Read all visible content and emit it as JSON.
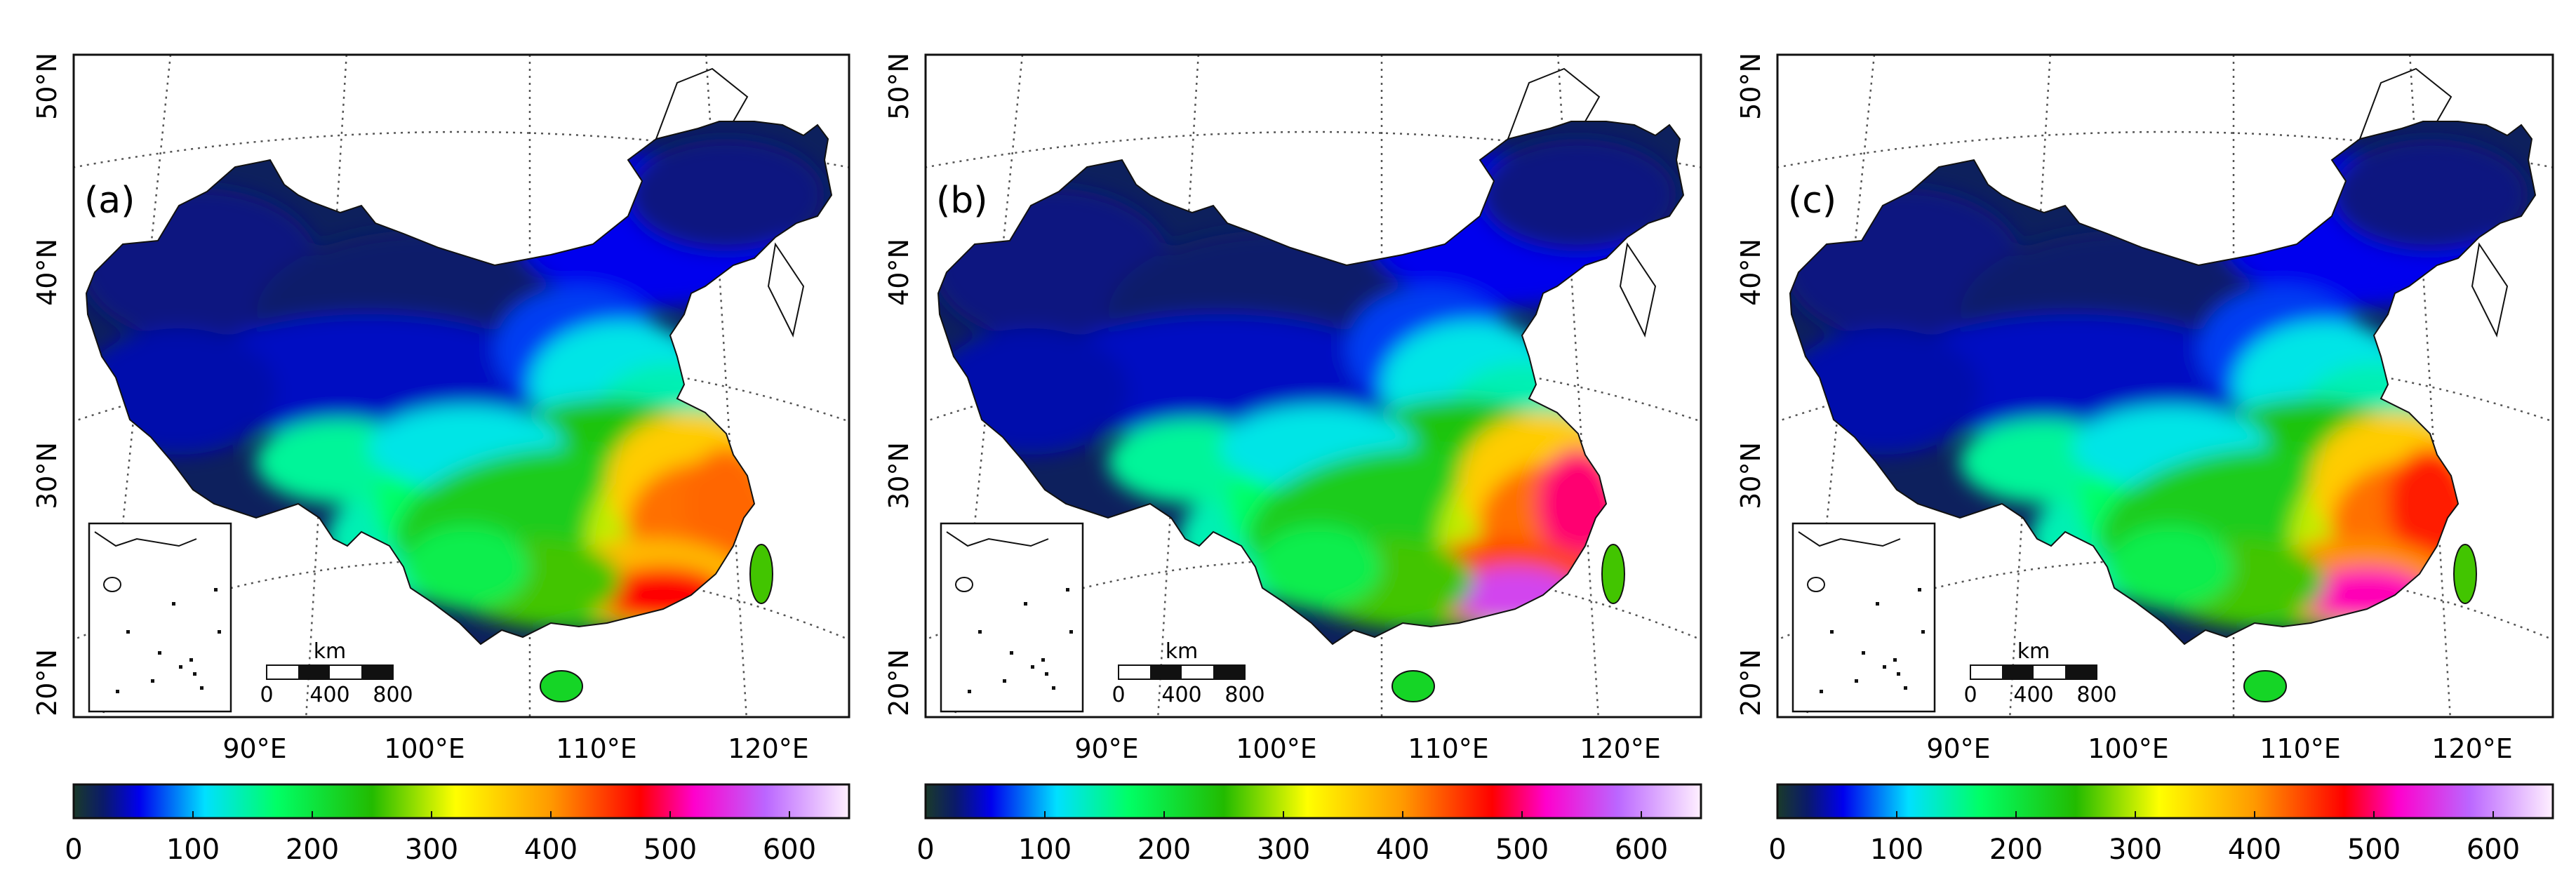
{
  "panels": [
    {
      "label": "(a)",
      "hot_scale": 0.85
    },
    {
      "label": "(b)",
      "hot_scale": 1.0
    },
    {
      "label": "(c)",
      "hot_scale": 0.92
    }
  ],
  "lat_labels": [
    "20°N",
    "30°N",
    "40°N",
    "50°N"
  ],
  "lon_labels": [
    "90°E",
    "100°E",
    "110°E",
    "120°E"
  ],
  "scale_bar": {
    "unit": "km",
    "ticks": [
      "0",
      "400",
      "800"
    ]
  },
  "colorbar": {
    "ticks": [
      "0",
      "100",
      "200",
      "300",
      "400",
      "500",
      "600"
    ],
    "min": 0,
    "max": 650,
    "stops": [
      {
        "value": 0,
        "color": "#1a3a2a"
      },
      {
        "value": 25,
        "color": "#0a1a6a"
      },
      {
        "value": 55,
        "color": "#0000ee"
      },
      {
        "value": 110,
        "color": "#00e0ff"
      },
      {
        "value": 170,
        "color": "#00ff66"
      },
      {
        "value": 250,
        "color": "#22bb00"
      },
      {
        "value": 320,
        "color": "#ffff00"
      },
      {
        "value": 400,
        "color": "#ff9900"
      },
      {
        "value": 475,
        "color": "#ff0000"
      },
      {
        "value": 520,
        "color": "#ff00cc"
      },
      {
        "value": 580,
        "color": "#bb66ff"
      },
      {
        "value": 650,
        "color": "#fff0ff"
      }
    ]
  }
}
